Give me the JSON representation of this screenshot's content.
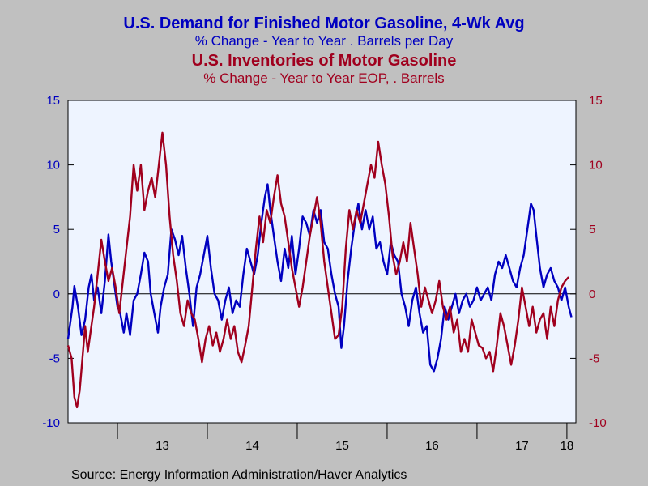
{
  "titles": {
    "series1_title": "U.S. Demand for Finished Motor Gasoline, 4-Wk Avg",
    "series1_subtitle": "% Change - Year to Year    . Barrels per Day",
    "series2_title": "U.S. Inventories of Motor Gasoline",
    "series2_subtitle": "% Change - Year to Year    EOP, . Barrels"
  },
  "source": "Source:  Energy Information Administration/Haver Analytics",
  "colors": {
    "background": "#c0c0c0",
    "plot_area": "#eef4ff",
    "series1": "#0000c0",
    "series2": "#a0001e"
  },
  "chart_data": {
    "type": "line",
    "xlim": [
      2012.45,
      2018.1
    ],
    "x_tick_labels": [
      "13",
      "14",
      "15",
      "16",
      "17",
      "18"
    ],
    "x_label_positions": [
      2013.5,
      2014.5,
      2015.5,
      2016.5,
      2017.5,
      2018.0
    ],
    "x_year_boundaries": [
      2013,
      2014,
      2015,
      2016,
      2017,
      2018
    ],
    "left_axis": {
      "ylim": [
        -10,
        15
      ],
      "ticks": [
        15,
        10,
        5,
        0,
        -5,
        -10
      ]
    },
    "right_axis": {
      "ylim": [
        -10,
        15
      ],
      "ticks": [
        15,
        10,
        5,
        0,
        -5,
        -10
      ]
    },
    "grid": false,
    "zero_line": true,
    "series": [
      {
        "axis": "left",
        "color": "#0000c0",
        "points": [
          [
            2012.45,
            -3.5
          ],
          [
            2012.5,
            -1.0
          ],
          [
            2012.52,
            0.6
          ],
          [
            2012.56,
            -1.0
          ],
          [
            2012.6,
            -3.2
          ],
          [
            2012.64,
            -2.0
          ],
          [
            2012.68,
            0.5
          ],
          [
            2012.71,
            1.5
          ],
          [
            2012.74,
            -0.5
          ],
          [
            2012.78,
            0.5
          ],
          [
            2012.82,
            -1.5
          ],
          [
            2012.86,
            1.0
          ],
          [
            2012.9,
            4.6
          ],
          [
            2012.93,
            2.5
          ],
          [
            2012.97,
            0.5
          ],
          [
            2013.0,
            -1.0
          ],
          [
            2013.03,
            -1.5
          ],
          [
            2013.07,
            -3.0
          ],
          [
            2013.1,
            -1.5
          ],
          [
            2013.14,
            -3.2
          ],
          [
            2013.18,
            -0.5
          ],
          [
            2013.22,
            0.0
          ],
          [
            2013.26,
            1.5
          ],
          [
            2013.3,
            3.2
          ],
          [
            2013.34,
            2.5
          ],
          [
            2013.37,
            0.0
          ],
          [
            2013.41,
            -1.5
          ],
          [
            2013.45,
            -3.0
          ],
          [
            2013.48,
            -1.0
          ],
          [
            2013.52,
            0.5
          ],
          [
            2013.56,
            1.5
          ],
          [
            2013.6,
            5.0
          ],
          [
            2013.64,
            4.2
          ],
          [
            2013.68,
            3.0
          ],
          [
            2013.72,
            4.5
          ],
          [
            2013.76,
            2.0
          ],
          [
            2013.8,
            0.0
          ],
          [
            2013.84,
            -2.5
          ],
          [
            2013.88,
            0.5
          ],
          [
            2013.92,
            1.5
          ],
          [
            2013.96,
            3.0
          ],
          [
            2014.0,
            4.5
          ],
          [
            2014.04,
            2.0
          ],
          [
            2014.08,
            0.0
          ],
          [
            2014.12,
            -0.5
          ],
          [
            2014.16,
            -2.0
          ],
          [
            2014.2,
            -0.5
          ],
          [
            2014.24,
            0.5
          ],
          [
            2014.28,
            -1.5
          ],
          [
            2014.32,
            -0.5
          ],
          [
            2014.36,
            -1.0
          ],
          [
            2014.4,
            1.5
          ],
          [
            2014.44,
            3.5
          ],
          [
            2014.48,
            2.5
          ],
          [
            2014.52,
            1.5
          ],
          [
            2014.56,
            3.0
          ],
          [
            2014.6,
            5.5
          ],
          [
            2014.64,
            7.5
          ],
          [
            2014.67,
            8.5
          ],
          [
            2014.7,
            6.5
          ],
          [
            2014.74,
            4.5
          ],
          [
            2014.78,
            2.5
          ],
          [
            2014.82,
            1.0
          ],
          [
            2014.86,
            3.5
          ],
          [
            2014.9,
            2.0
          ],
          [
            2014.94,
            4.5
          ],
          [
            2014.98,
            1.5
          ],
          [
            2015.02,
            3.5
          ],
          [
            2015.06,
            6.0
          ],
          [
            2015.1,
            5.5
          ],
          [
            2015.14,
            4.5
          ],
          [
            2015.18,
            6.5
          ],
          [
            2015.22,
            5.5
          ],
          [
            2015.26,
            6.5
          ],
          [
            2015.3,
            4.0
          ],
          [
            2015.34,
            3.5
          ],
          [
            2015.38,
            1.5
          ],
          [
            2015.42,
            0.0
          ],
          [
            2015.46,
            -1.0
          ],
          [
            2015.49,
            -4.2
          ],
          [
            2015.52,
            -2.5
          ],
          [
            2015.56,
            1.0
          ],
          [
            2015.6,
            3.5
          ],
          [
            2015.64,
            5.5
          ],
          [
            2015.68,
            7.0
          ],
          [
            2015.72,
            5.0
          ],
          [
            2015.76,
            6.5
          ],
          [
            2015.8,
            5.0
          ],
          [
            2015.84,
            6.0
          ],
          [
            2015.88,
            3.5
          ],
          [
            2015.92,
            4.0
          ],
          [
            2015.96,
            2.5
          ],
          [
            2016.0,
            1.5
          ],
          [
            2016.04,
            4.0
          ],
          [
            2016.08,
            3.0
          ],
          [
            2016.12,
            2.5
          ],
          [
            2016.16,
            0.0
          ],
          [
            2016.2,
            -1.0
          ],
          [
            2016.24,
            -2.5
          ],
          [
            2016.28,
            -0.5
          ],
          [
            2016.32,
            0.5
          ],
          [
            2016.36,
            -1.5
          ],
          [
            2016.4,
            -3.0
          ],
          [
            2016.44,
            -2.5
          ],
          [
            2016.48,
            -5.5
          ],
          [
            2016.52,
            -6.0
          ],
          [
            2016.56,
            -5.0
          ],
          [
            2016.6,
            -3.5
          ],
          [
            2016.64,
            -1.0
          ],
          [
            2016.68,
            -2.0
          ],
          [
            2016.72,
            -1.0
          ],
          [
            2016.76,
            0.0
          ],
          [
            2016.8,
            -1.5
          ],
          [
            2016.84,
            -0.5
          ],
          [
            2016.88,
            0.0
          ],
          [
            2016.92,
            -1.0
          ],
          [
            2016.96,
            -0.5
          ],
          [
            2017.0,
            0.5
          ],
          [
            2017.04,
            -0.5
          ],
          [
            2017.08,
            0.0
          ],
          [
            2017.12,
            0.5
          ],
          [
            2017.16,
            -0.5
          ],
          [
            2017.2,
            1.5
          ],
          [
            2017.24,
            2.5
          ],
          [
            2017.28,
            2.0
          ],
          [
            2017.32,
            3.0
          ],
          [
            2017.36,
            2.0
          ],
          [
            2017.4,
            1.0
          ],
          [
            2017.44,
            0.5
          ],
          [
            2017.48,
            2.0
          ],
          [
            2017.52,
            3.0
          ],
          [
            2017.56,
            5.0
          ],
          [
            2017.6,
            7.0
          ],
          [
            2017.63,
            6.5
          ],
          [
            2017.66,
            4.5
          ],
          [
            2017.7,
            2.0
          ],
          [
            2017.74,
            0.5
          ],
          [
            2017.78,
            1.5
          ],
          [
            2017.82,
            2.0
          ],
          [
            2017.86,
            1.0
          ],
          [
            2017.9,
            0.5
          ],
          [
            2017.94,
            -0.5
          ],
          [
            2017.98,
            0.5
          ],
          [
            2018.02,
            -1.0
          ],
          [
            2018.05,
            -1.8
          ]
        ]
      },
      {
        "axis": "right",
        "color": "#a0001e",
        "points": [
          [
            2012.45,
            -4.0
          ],
          [
            2012.49,
            -5.0
          ],
          [
            2012.52,
            -8.0
          ],
          [
            2012.55,
            -8.8
          ],
          [
            2012.58,
            -7.5
          ],
          [
            2012.61,
            -5.0
          ],
          [
            2012.64,
            -2.5
          ],
          [
            2012.67,
            -4.5
          ],
          [
            2012.7,
            -3.0
          ],
          [
            2012.74,
            -1.0
          ],
          [
            2012.78,
            1.5
          ],
          [
            2012.82,
            4.2
          ],
          [
            2012.86,
            2.5
          ],
          [
            2012.9,
            1.0
          ],
          [
            2012.94,
            2.0
          ],
          [
            2012.98,
            0.5
          ],
          [
            2013.02,
            -1.5
          ],
          [
            2013.06,
            1.0
          ],
          [
            2013.1,
            3.5
          ],
          [
            2013.14,
            6.0
          ],
          [
            2013.18,
            10.0
          ],
          [
            2013.22,
            8.0
          ],
          [
            2013.26,
            10.0
          ],
          [
            2013.3,
            6.5
          ],
          [
            2013.34,
            8.0
          ],
          [
            2013.38,
            9.0
          ],
          [
            2013.42,
            7.5
          ],
          [
            2013.46,
            10.0
          ],
          [
            2013.5,
            12.5
          ],
          [
            2013.54,
            10.0
          ],
          [
            2013.58,
            6.0
          ],
          [
            2013.62,
            3.0
          ],
          [
            2013.66,
            1.0
          ],
          [
            2013.7,
            -1.5
          ],
          [
            2013.74,
            -2.5
          ],
          [
            2013.78,
            -0.5
          ],
          [
            2013.82,
            -1.5
          ],
          [
            2013.86,
            -2.0
          ],
          [
            2013.9,
            -3.5
          ],
          [
            2013.94,
            -5.3
          ],
          [
            2013.98,
            -3.5
          ],
          [
            2014.02,
            -2.5
          ],
          [
            2014.06,
            -4.0
          ],
          [
            2014.1,
            -3.0
          ],
          [
            2014.14,
            -4.5
          ],
          [
            2014.18,
            -3.5
          ],
          [
            2014.22,
            -2.0
          ],
          [
            2014.26,
            -3.5
          ],
          [
            2014.3,
            -2.5
          ],
          [
            2014.34,
            -4.5
          ],
          [
            2014.38,
            -5.3
          ],
          [
            2014.42,
            -4.0
          ],
          [
            2014.46,
            -2.5
          ],
          [
            2014.5,
            0.5
          ],
          [
            2014.54,
            3.5
          ],
          [
            2014.58,
            6.0
          ],
          [
            2014.62,
            4.0
          ],
          [
            2014.66,
            6.5
          ],
          [
            2014.7,
            5.5
          ],
          [
            2014.74,
            7.5
          ],
          [
            2014.78,
            9.2
          ],
          [
            2014.82,
            7.0
          ],
          [
            2014.86,
            6.0
          ],
          [
            2014.9,
            4.0
          ],
          [
            2014.94,
            2.0
          ],
          [
            2014.98,
            0.5
          ],
          [
            2015.02,
            -1.0
          ],
          [
            2015.06,
            0.5
          ],
          [
            2015.1,
            2.5
          ],
          [
            2015.14,
            4.5
          ],
          [
            2015.18,
            6.0
          ],
          [
            2015.22,
            7.5
          ],
          [
            2015.26,
            5.5
          ],
          [
            2015.3,
            2.5
          ],
          [
            2015.34,
            0.5
          ],
          [
            2015.38,
            -1.5
          ],
          [
            2015.42,
            -3.5
          ],
          [
            2015.46,
            -3.2
          ],
          [
            2015.5,
            -1.0
          ],
          [
            2015.54,
            3.5
          ],
          [
            2015.58,
            6.5
          ],
          [
            2015.62,
            5.0
          ],
          [
            2015.66,
            6.5
          ],
          [
            2015.7,
            5.5
          ],
          [
            2015.74,
            7.0
          ],
          [
            2015.78,
            8.5
          ],
          [
            2015.82,
            10.0
          ],
          [
            2015.86,
            9.0
          ],
          [
            2015.9,
            11.8
          ],
          [
            2015.94,
            10.0
          ],
          [
            2015.98,
            8.5
          ],
          [
            2016.02,
            6.0
          ],
          [
            2016.06,
            3.0
          ],
          [
            2016.1,
            1.5
          ],
          [
            2016.14,
            2.5
          ],
          [
            2016.18,
            4.0
          ],
          [
            2016.22,
            2.5
          ],
          [
            2016.26,
            5.5
          ],
          [
            2016.3,
            3.5
          ],
          [
            2016.34,
            1.5
          ],
          [
            2016.38,
            -1.0
          ],
          [
            2016.42,
            0.5
          ],
          [
            2016.46,
            -0.5
          ],
          [
            2016.5,
            -1.5
          ],
          [
            2016.54,
            -0.5
          ],
          [
            2016.58,
            1.0
          ],
          [
            2016.62,
            -1.0
          ],
          [
            2016.66,
            -2.0
          ],
          [
            2016.7,
            -1.0
          ],
          [
            2016.74,
            -3.0
          ],
          [
            2016.78,
            -2.0
          ],
          [
            2016.82,
            -4.5
          ],
          [
            2016.86,
            -3.5
          ],
          [
            2016.9,
            -4.5
          ],
          [
            2016.94,
            -2.0
          ],
          [
            2016.98,
            -3.0
          ],
          [
            2017.02,
            -4.0
          ],
          [
            2017.06,
            -4.2
          ],
          [
            2017.1,
            -5.0
          ],
          [
            2017.14,
            -4.5
          ],
          [
            2017.18,
            -6.0
          ],
          [
            2017.22,
            -4.0
          ],
          [
            2017.26,
            -1.5
          ],
          [
            2017.3,
            -2.5
          ],
          [
            2017.34,
            -4.0
          ],
          [
            2017.38,
            -5.5
          ],
          [
            2017.42,
            -4.0
          ],
          [
            2017.46,
            -2.0
          ],
          [
            2017.5,
            0.5
          ],
          [
            2017.54,
            -1.0
          ],
          [
            2017.58,
            -2.5
          ],
          [
            2017.62,
            -1.0
          ],
          [
            2017.66,
            -3.0
          ],
          [
            2017.7,
            -2.0
          ],
          [
            2017.74,
            -1.5
          ],
          [
            2017.78,
            -3.5
          ],
          [
            2017.82,
            -1.0
          ],
          [
            2017.86,
            -2.5
          ],
          [
            2017.9,
            -0.5
          ],
          [
            2017.94,
            0.5
          ],
          [
            2017.98,
            1.0
          ],
          [
            2018.02,
            1.3
          ]
        ]
      }
    ]
  }
}
